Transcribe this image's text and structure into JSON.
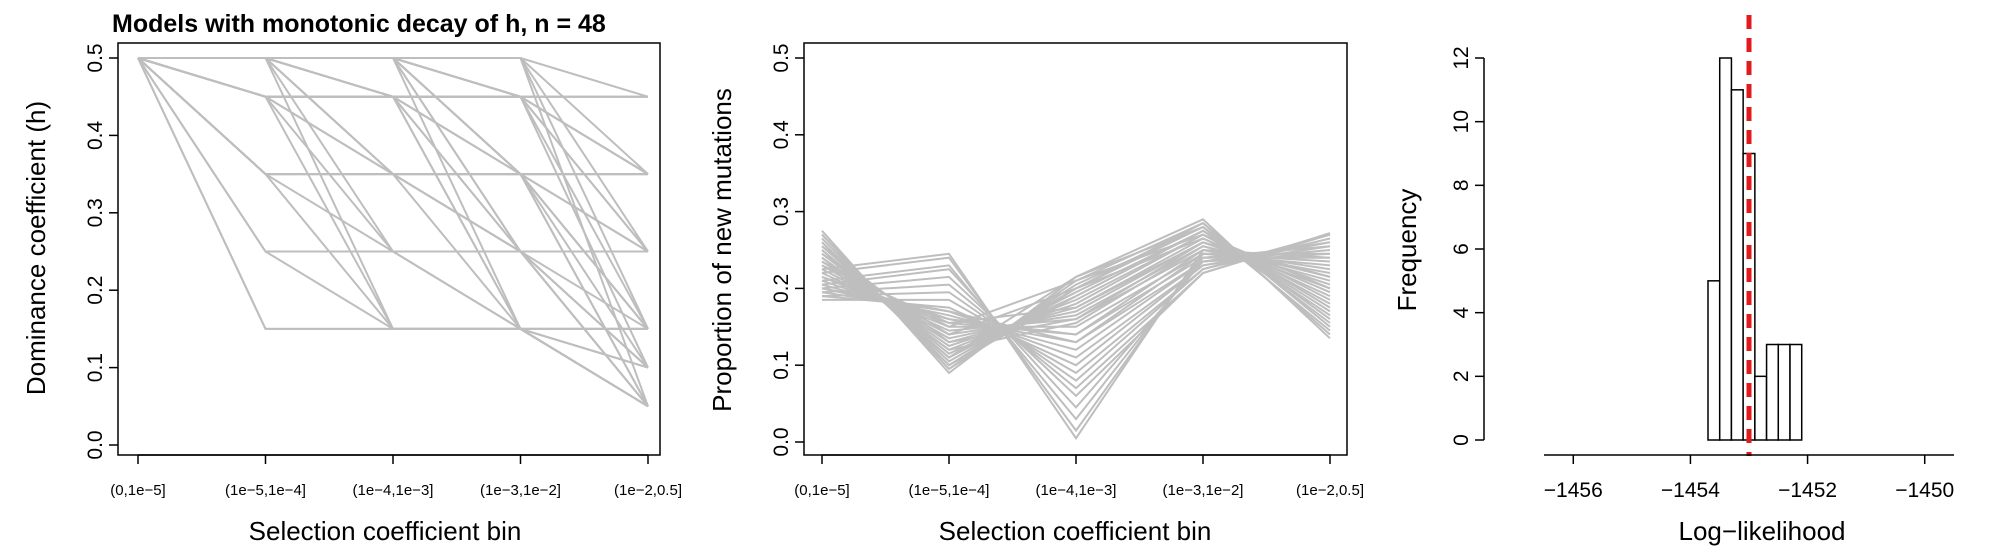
{
  "chart_data": [
    {
      "type": "line",
      "title": "Models with monotonic decay of h, n = 48",
      "xlabel": "Selection coefficient bin",
      "ylabel": "Dominance coefficient (h)",
      "categories": [
        "(0,1e−5]",
        "(1e−5,1e−4]",
        "(1e−4,1e−3]",
        "(1e−3,1e−2]",
        "(1e−2,0.5]"
      ],
      "ylim": [
        0,
        0.5
      ],
      "yticks": [
        "0.0",
        "0.1",
        "0.2",
        "0.3",
        "0.4",
        "0.5"
      ],
      "line_color": "#bebebe",
      "series": [
        {
          "values": [
            0.5,
            0.5,
            0.5,
            0.5,
            0.45
          ]
        },
        {
          "values": [
            0.5,
            0.5,
            0.5,
            0.5,
            0.35
          ]
        },
        {
          "values": [
            0.5,
            0.5,
            0.5,
            0.5,
            0.25
          ]
        },
        {
          "values": [
            0.5,
            0.5,
            0.5,
            0.5,
            0.15
          ]
        },
        {
          "values": [
            0.5,
            0.5,
            0.5,
            0.5,
            0.05
          ]
        },
        {
          "values": [
            0.5,
            0.5,
            0.5,
            0.45,
            0.45
          ]
        },
        {
          "values": [
            0.5,
            0.5,
            0.5,
            0.45,
            0.35
          ]
        },
        {
          "values": [
            0.5,
            0.5,
            0.5,
            0.45,
            0.25
          ]
        },
        {
          "values": [
            0.5,
            0.5,
            0.5,
            0.45,
            0.1
          ]
        },
        {
          "values": [
            0.5,
            0.5,
            0.5,
            0.35,
            0.35
          ]
        },
        {
          "values": [
            0.5,
            0.5,
            0.5,
            0.35,
            0.15
          ]
        },
        {
          "values": [
            0.5,
            0.5,
            0.5,
            0.35,
            0.05
          ]
        },
        {
          "values": [
            0.5,
            0.5,
            0.5,
            0.25,
            0.1
          ]
        },
        {
          "values": [
            0.5,
            0.5,
            0.5,
            0.15,
            0.05
          ]
        },
        {
          "values": [
            0.5,
            0.5,
            0.45,
            0.45,
            0.45
          ]
        },
        {
          "values": [
            0.5,
            0.5,
            0.45,
            0.45,
            0.15
          ]
        },
        {
          "values": [
            0.5,
            0.5,
            0.45,
            0.35,
            0.25
          ]
        },
        {
          "values": [
            0.5,
            0.5,
            0.45,
            0.25,
            0.05
          ]
        },
        {
          "values": [
            0.5,
            0.5,
            0.35,
            0.35,
            0.35
          ]
        },
        {
          "values": [
            0.5,
            0.5,
            0.35,
            0.25,
            0.1
          ]
        },
        {
          "values": [
            0.5,
            0.5,
            0.25,
            0.15,
            0.05
          ]
        },
        {
          "values": [
            0.5,
            0.5,
            0.15,
            0.15,
            0.1
          ]
        },
        {
          "values": [
            0.5,
            0.45,
            0.45,
            0.45,
            0.45
          ]
        },
        {
          "values": [
            0.5,
            0.45,
            0.45,
            0.45,
            0.25
          ]
        },
        {
          "values": [
            0.5,
            0.45,
            0.45,
            0.35,
            0.15
          ]
        },
        {
          "values": [
            0.5,
            0.45,
            0.45,
            0.25,
            0.05
          ]
        },
        {
          "values": [
            0.5,
            0.45,
            0.35,
            0.35,
            0.35
          ]
        },
        {
          "values": [
            0.5,
            0.45,
            0.35,
            0.25,
            0.1
          ]
        },
        {
          "values": [
            0.5,
            0.45,
            0.25,
            0.15,
            0.05
          ]
        },
        {
          "values": [
            0.5,
            0.45,
            0.15,
            0.15,
            0.15
          ]
        },
        {
          "values": [
            0.5,
            0.35,
            0.35,
            0.35,
            0.35
          ]
        },
        {
          "values": [
            0.5,
            0.35,
            0.35,
            0.35,
            0.1
          ]
        },
        {
          "values": [
            0.5,
            0.35,
            0.35,
            0.25,
            0.05
          ]
        },
        {
          "values": [
            0.5,
            0.35,
            0.25,
            0.25,
            0.15
          ]
        },
        {
          "values": [
            0.5,
            0.35,
            0.15,
            0.15,
            0.05
          ]
        },
        {
          "values": [
            0.5,
            0.25,
            0.25,
            0.25,
            0.25
          ]
        },
        {
          "values": [
            0.5,
            0.25,
            0.15,
            0.15,
            0.1
          ]
        },
        {
          "values": [
            0.5,
            0.15,
            0.15,
            0.15,
            0.15
          ]
        },
        {
          "values": [
            0.5,
            0.15,
            0.15,
            0.15,
            0.05
          ]
        },
        {
          "values": [
            0.5,
            0.45,
            0.45,
            0.45,
            0.35
          ]
        },
        {
          "values": [
            0.5,
            0.45,
            0.45,
            0.35,
            0.05
          ]
        },
        {
          "values": [
            0.5,
            0.5,
            0.45,
            0.45,
            0.35
          ]
        },
        {
          "values": [
            0.5,
            0.5,
            0.35,
            0.35,
            0.15
          ]
        },
        {
          "values": [
            0.5,
            0.5,
            0.5,
            0.25,
            0.25
          ]
        },
        {
          "values": [
            0.5,
            0.45,
            0.45,
            0.15,
            0.05
          ]
        },
        {
          "values": [
            0.5,
            0.35,
            0.35,
            0.15,
            0.15
          ]
        },
        {
          "values": [
            0.5,
            0.5,
            0.45,
            0.15,
            0.15
          ]
        },
        {
          "values": [
            0.5,
            0.5,
            0.5,
            0.35,
            0.25
          ]
        }
      ]
    },
    {
      "type": "line",
      "title": "",
      "xlabel": "Selection coefficient bin",
      "ylabel": "Proportion of new mutations",
      "categories": [
        "(0,1e−5]",
        "(1e−5,1e−4]",
        "(1e−4,1e−3]",
        "(1e−3,1e−2]",
        "(1e−2,0.5]"
      ],
      "ylim": [
        0,
        0.5
      ],
      "yticks": [
        "0.0",
        "0.1",
        "0.2",
        "0.3",
        "0.4",
        "0.5"
      ],
      "line_color": "#bebebe",
      "series": [
        {
          "values": [
            0.275,
            0.09,
            0.215,
            0.29,
            0.135
          ]
        },
        {
          "values": [
            0.27,
            0.095,
            0.21,
            0.285,
            0.14
          ]
        },
        {
          "values": [
            0.265,
            0.1,
            0.205,
            0.28,
            0.145
          ]
        },
        {
          "values": [
            0.26,
            0.105,
            0.2,
            0.28,
            0.155
          ]
        },
        {
          "values": [
            0.255,
            0.11,
            0.195,
            0.275,
            0.165
          ]
        },
        {
          "values": [
            0.25,
            0.115,
            0.19,
            0.275,
            0.17
          ]
        },
        {
          "values": [
            0.245,
            0.12,
            0.185,
            0.27,
            0.18
          ]
        },
        {
          "values": [
            0.24,
            0.125,
            0.18,
            0.27,
            0.185
          ]
        },
        {
          "values": [
            0.235,
            0.13,
            0.175,
            0.265,
            0.195
          ]
        },
        {
          "values": [
            0.23,
            0.135,
            0.17,
            0.26,
            0.205
          ]
        },
        {
          "values": [
            0.225,
            0.14,
            0.165,
            0.255,
            0.215
          ]
        },
        {
          "values": [
            0.22,
            0.145,
            0.16,
            0.25,
            0.22
          ]
        },
        {
          "values": [
            0.215,
            0.15,
            0.15,
            0.245,
            0.23
          ]
        },
        {
          "values": [
            0.21,
            0.155,
            0.14,
            0.24,
            0.24
          ]
        },
        {
          "values": [
            0.205,
            0.16,
            0.13,
            0.235,
            0.245
          ]
        },
        {
          "values": [
            0.2,
            0.165,
            0.12,
            0.235,
            0.25
          ]
        },
        {
          "values": [
            0.195,
            0.17,
            0.11,
            0.23,
            0.255
          ]
        },
        {
          "values": [
            0.19,
            0.175,
            0.1,
            0.23,
            0.26
          ]
        },
        {
          "values": [
            0.185,
            0.185,
            0.09,
            0.225,
            0.265
          ]
        },
        {
          "values": [
            0.19,
            0.195,
            0.08,
            0.225,
            0.27
          ]
        },
        {
          "values": [
            0.195,
            0.205,
            0.07,
            0.22,
            0.27
          ]
        },
        {
          "values": [
            0.2,
            0.215,
            0.06,
            0.22,
            0.272
          ]
        },
        {
          "values": [
            0.205,
            0.225,
            0.045,
            0.235,
            0.26
          ]
        },
        {
          "values": [
            0.21,
            0.23,
            0.03,
            0.24,
            0.255
          ]
        },
        {
          "values": [
            0.22,
            0.24,
            0.015,
            0.245,
            0.245
          ]
        },
        {
          "values": [
            0.225,
            0.245,
            0.005,
            0.25,
            0.24
          ]
        },
        {
          "values": [
            0.235,
            0.15,
            0.21,
            0.27,
            0.2
          ]
        },
        {
          "values": [
            0.245,
            0.14,
            0.2,
            0.265,
            0.19
          ]
        },
        {
          "values": [
            0.23,
            0.155,
            0.175,
            0.26,
            0.215
          ]
        },
        {
          "values": [
            0.24,
            0.12,
            0.155,
            0.255,
            0.21
          ]
        },
        {
          "values": [
            0.25,
            0.11,
            0.215,
            0.28,
            0.16
          ]
        },
        {
          "values": [
            0.26,
            0.1,
            0.19,
            0.275,
            0.175
          ]
        },
        {
          "values": [
            0.2,
            0.17,
            0.13,
            0.245,
            0.235
          ]
        },
        {
          "values": [
            0.215,
            0.16,
            0.14,
            0.25,
            0.225
          ]
        },
        {
          "values": [
            0.27,
            0.095,
            0.2,
            0.285,
            0.15
          ]
        },
        {
          "values": [
            0.255,
            0.13,
            0.16,
            0.26,
            0.2
          ]
        }
      ]
    },
    {
      "type": "bar",
      "title": "",
      "xlabel": "Log−likelihood",
      "ylabel": "Frequency",
      "xlim": [
        -1456.5,
        -1449.5
      ],
      "xticks": [
        "−1456",
        "−1454",
        "−1452",
        "−1450"
      ],
      "ylim": [
        0,
        12
      ],
      "yticks": [
        "0",
        "2",
        "4",
        "6",
        "8",
        "10",
        "12"
      ],
      "bins": [
        {
          "from": -1453.7,
          "to": -1453.5,
          "count": 5
        },
        {
          "from": -1453.5,
          "to": -1453.3,
          "count": 12
        },
        {
          "from": -1453.3,
          "to": -1453.1,
          "count": 11
        },
        {
          "from": -1453.1,
          "to": -1452.9,
          "count": 9
        },
        {
          "from": -1452.9,
          "to": -1452.7,
          "count": 2
        },
        {
          "from": -1452.7,
          "to": -1452.5,
          "count": 3
        },
        {
          "from": -1452.5,
          "to": -1452.3,
          "count": 3
        },
        {
          "from": -1452.3,
          "to": -1452.1,
          "count": 3
        }
      ],
      "reference_line": {
        "x": -1453.0,
        "color": "#e31a1c",
        "style": "dashed"
      }
    }
  ]
}
